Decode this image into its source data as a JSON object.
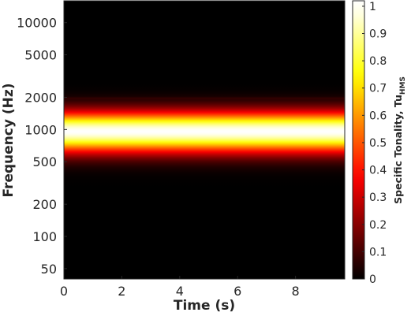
{
  "chart_data": {
    "type": "heatmap",
    "title": "",
    "xlabel": "Time (s)",
    "ylabel": "Frequency (Hz)",
    "x_ticks": [
      0,
      2,
      4,
      6,
      8
    ],
    "xlim": [
      0,
      9.7
    ],
    "y_scale": "log",
    "y_ticks": [
      50,
      100,
      200,
      500,
      1000,
      2000,
      5000,
      10000
    ],
    "ylim": [
      40,
      16000
    ],
    "colorbar": {
      "label_main": "Specific Tonality, Tu",
      "label_sub": "HMS",
      "colormap": "hot",
      "ticks": [
        0,
        0.1,
        0.2,
        0.3,
        0.4,
        0.5,
        0.6,
        0.7,
        0.8,
        0.9,
        1
      ],
      "range": [
        0,
        1.02
      ]
    },
    "band": {
      "center_frequency": 960,
      "peak_value": 1.0,
      "upper_edge_frequency": 1400,
      "lower_edge_frequency": 640,
      "faint_line_frequency": 1950,
      "faint_line_value": 0.08
    },
    "background_value": 0
  }
}
